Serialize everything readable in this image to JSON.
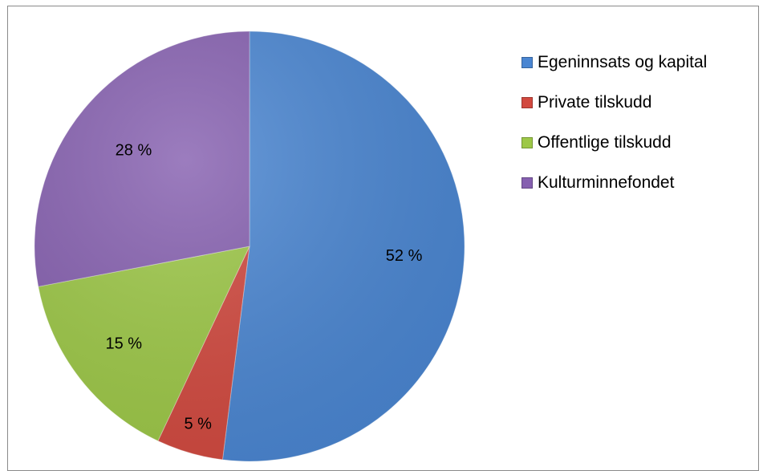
{
  "chart_data": {
    "type": "pie",
    "title": "",
    "legend_position": "right",
    "slices": [
      {
        "name": "Egeninnsats og kapital",
        "value": 52,
        "label": "52 %",
        "color": "#4a86d2"
      },
      {
        "name": "Private tilskudd",
        "value": 5,
        "label": "5 %",
        "color": "#d2493f"
      },
      {
        "name": "Offentlige tilskudd",
        "value": 15,
        "label": "15 %",
        "color": "#9dc847"
      },
      {
        "name": "Kulturminnefondet",
        "value": 28,
        "label": "28 %",
        "color": "#8660b0"
      }
    ],
    "start_angle_deg": 0,
    "direction": "clockwise"
  }
}
